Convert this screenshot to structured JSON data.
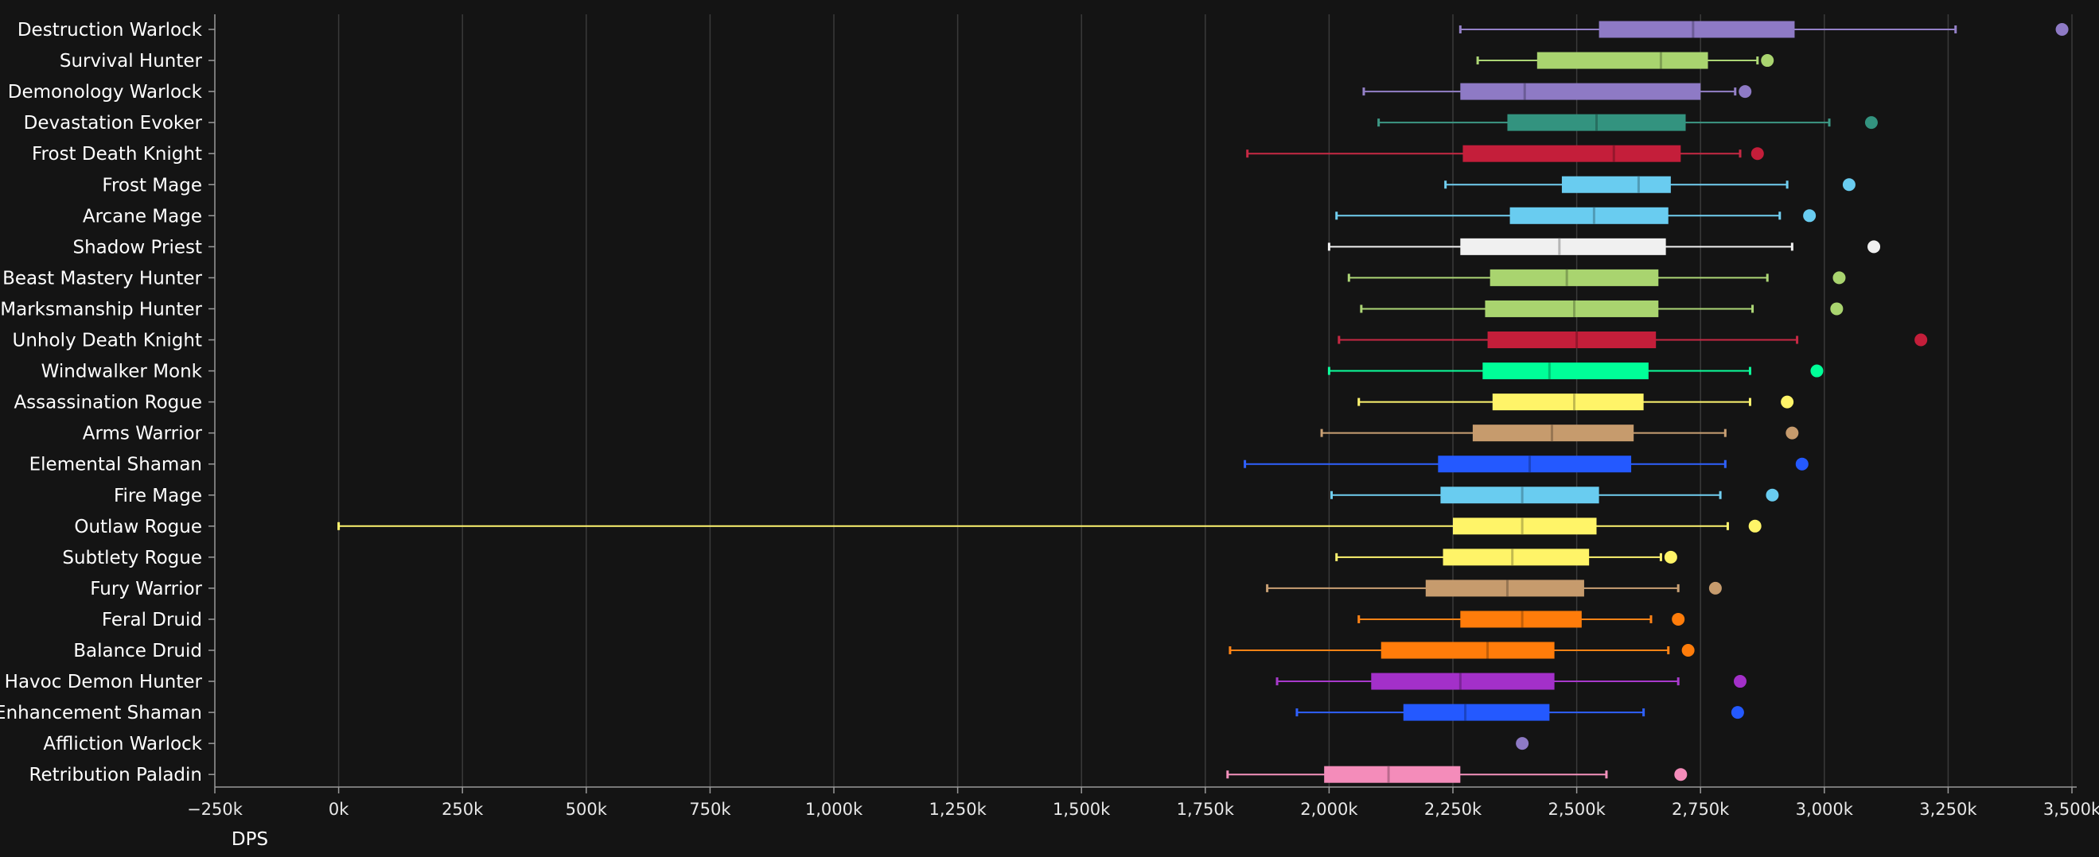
{
  "chart_data": {
    "type": "boxplot",
    "xlabel": "DPS",
    "xlim": [
      -250000,
      3550000
    ],
    "xticks": [
      -250000,
      0,
      250000,
      500000,
      750000,
      1000000,
      1250000,
      1500000,
      1750000,
      2000000,
      2250000,
      2500000,
      2750000,
      3000000,
      3250000,
      3500000
    ],
    "xtick_labels": [
      "−250k",
      "0k",
      "250k",
      "500k",
      "750k",
      "1,000k",
      "1,250k",
      "1,500k",
      "1,750k",
      "2,000k",
      "2,250k",
      "2,500k",
      "2,750k",
      "3,000k",
      "3,250k",
      "3,500k"
    ],
    "grid": true,
    "series": [
      {
        "name": "Destruction Warlock",
        "color": "#8e7ac5",
        "whisker_low": 2265000,
        "q1": 2545000,
        "median": 2735000,
        "q3": 2940000,
        "whisker_high": 3265000,
        "outlier": 3480000
      },
      {
        "name": "Survival Hunter",
        "color": "#a9d46f",
        "whisker_low": 2300000,
        "q1": 2420000,
        "median": 2670000,
        "q3": 2765000,
        "whisker_high": 2865000,
        "outlier": 2885000
      },
      {
        "name": "Demonology Warlock",
        "color": "#8e7ac5",
        "whisker_low": 2070000,
        "q1": 2265000,
        "median": 2395000,
        "q3": 2750000,
        "whisker_high": 2820000,
        "outlier": 2840000
      },
      {
        "name": "Devastation Evoker",
        "color": "#33937f",
        "whisker_low": 2100000,
        "q1": 2360000,
        "median": 2540000,
        "q3": 2720000,
        "whisker_high": 3010000,
        "outlier": 3095000
      },
      {
        "name": "Frost Death Knight",
        "color": "#c41e3a",
        "whisker_low": 1835000,
        "q1": 2270000,
        "median": 2575000,
        "q3": 2710000,
        "whisker_high": 2830000,
        "outlier": 2865000
      },
      {
        "name": "Frost Mage",
        "color": "#69ccf0",
        "whisker_low": 2235000,
        "q1": 2470000,
        "median": 2625000,
        "q3": 2690000,
        "whisker_high": 2925000,
        "outlier": 3050000
      },
      {
        "name": "Arcane Mage",
        "color": "#69ccf0",
        "whisker_low": 2015000,
        "q1": 2365000,
        "median": 2535000,
        "q3": 2685000,
        "whisker_high": 2910000,
        "outlier": 2970000
      },
      {
        "name": "Shadow Priest",
        "color": "#f0f0f0",
        "whisker_low": 2000000,
        "q1": 2265000,
        "median": 2465000,
        "q3": 2680000,
        "whisker_high": 2935000,
        "outlier": 3100000
      },
      {
        "name": "Beast Mastery Hunter",
        "color": "#a9d46f",
        "whisker_low": 2040000,
        "q1": 2325000,
        "median": 2480000,
        "q3": 2665000,
        "whisker_high": 2885000,
        "outlier": 3030000
      },
      {
        "name": "Marksmanship Hunter",
        "color": "#a9d46f",
        "whisker_low": 2065000,
        "q1": 2315000,
        "median": 2495000,
        "q3": 2665000,
        "whisker_high": 2855000,
        "outlier": 3025000
      },
      {
        "name": "Unholy Death Knight",
        "color": "#c41e3a",
        "whisker_low": 2020000,
        "q1": 2320000,
        "median": 2500000,
        "q3": 2660000,
        "whisker_high": 2945000,
        "outlier": 3195000
      },
      {
        "name": "Windwalker Monk",
        "color": "#00ff98",
        "whisker_low": 2000000,
        "q1": 2310000,
        "median": 2445000,
        "q3": 2645000,
        "whisker_high": 2850000,
        "outlier": 2985000
      },
      {
        "name": "Assassination Rogue",
        "color": "#fff468",
        "whisker_low": 2060000,
        "q1": 2330000,
        "median": 2495000,
        "q3": 2635000,
        "whisker_high": 2850000,
        "outlier": 2925000
      },
      {
        "name": "Arms Warrior",
        "color": "#c69b6d",
        "whisker_low": 1985000,
        "q1": 2290000,
        "median": 2450000,
        "q3": 2615000,
        "whisker_high": 2800000,
        "outlier": 2935000
      },
      {
        "name": "Elemental Shaman",
        "color": "#2459ff",
        "whisker_low": 1830000,
        "q1": 2220000,
        "median": 2405000,
        "q3": 2610000,
        "whisker_high": 2800000,
        "outlier": 2955000
      },
      {
        "name": "Fire Mage",
        "color": "#69ccf0",
        "whisker_low": 2005000,
        "q1": 2225000,
        "median": 2390000,
        "q3": 2545000,
        "whisker_high": 2790000,
        "outlier": 2895000
      },
      {
        "name": "Outlaw Rogue",
        "color": "#fff468",
        "whisker_low": 0,
        "q1": 2250000,
        "median": 2390000,
        "q3": 2540000,
        "whisker_high": 2805000,
        "outlier": 2860000
      },
      {
        "name": "Subtlety Rogue",
        "color": "#fff468",
        "whisker_low": 2015000,
        "q1": 2230000,
        "median": 2370000,
        "q3": 2525000,
        "whisker_high": 2670000,
        "outlier": 2690000
      },
      {
        "name": "Fury Warrior",
        "color": "#c69b6d",
        "whisker_low": 1875000,
        "q1": 2195000,
        "median": 2360000,
        "q3": 2515000,
        "whisker_high": 2705000,
        "outlier": 2780000
      },
      {
        "name": "Feral Druid",
        "color": "#ff7c0a",
        "whisker_low": 2060000,
        "q1": 2265000,
        "median": 2390000,
        "q3": 2510000,
        "whisker_high": 2650000,
        "outlier": 2705000
      },
      {
        "name": "Balance Druid",
        "color": "#ff7c0a",
        "whisker_low": 1800000,
        "q1": 2105000,
        "median": 2320000,
        "q3": 2455000,
        "whisker_high": 2685000,
        "outlier": 2725000
      },
      {
        "name": "Havoc Demon Hunter",
        "color": "#a330c9",
        "whisker_low": 1895000,
        "q1": 2085000,
        "median": 2265000,
        "q3": 2455000,
        "whisker_high": 2705000,
        "outlier": 2830000
      },
      {
        "name": "Enhancement Shaman",
        "color": "#2459ff",
        "whisker_low": 1935000,
        "q1": 2150000,
        "median": 2275000,
        "q3": 2445000,
        "whisker_high": 2635000,
        "outlier": 2825000
      },
      {
        "name": "Affliction Warlock",
        "color": "#8e7ac5",
        "outlier": 2390000
      },
      {
        "name": "Retribution Paladin",
        "color": "#f48cba",
        "whisker_low": 1795000,
        "q1": 1990000,
        "median": 2120000,
        "q3": 2265000,
        "whisker_high": 2560000,
        "outlier": 2710000
      }
    ]
  }
}
